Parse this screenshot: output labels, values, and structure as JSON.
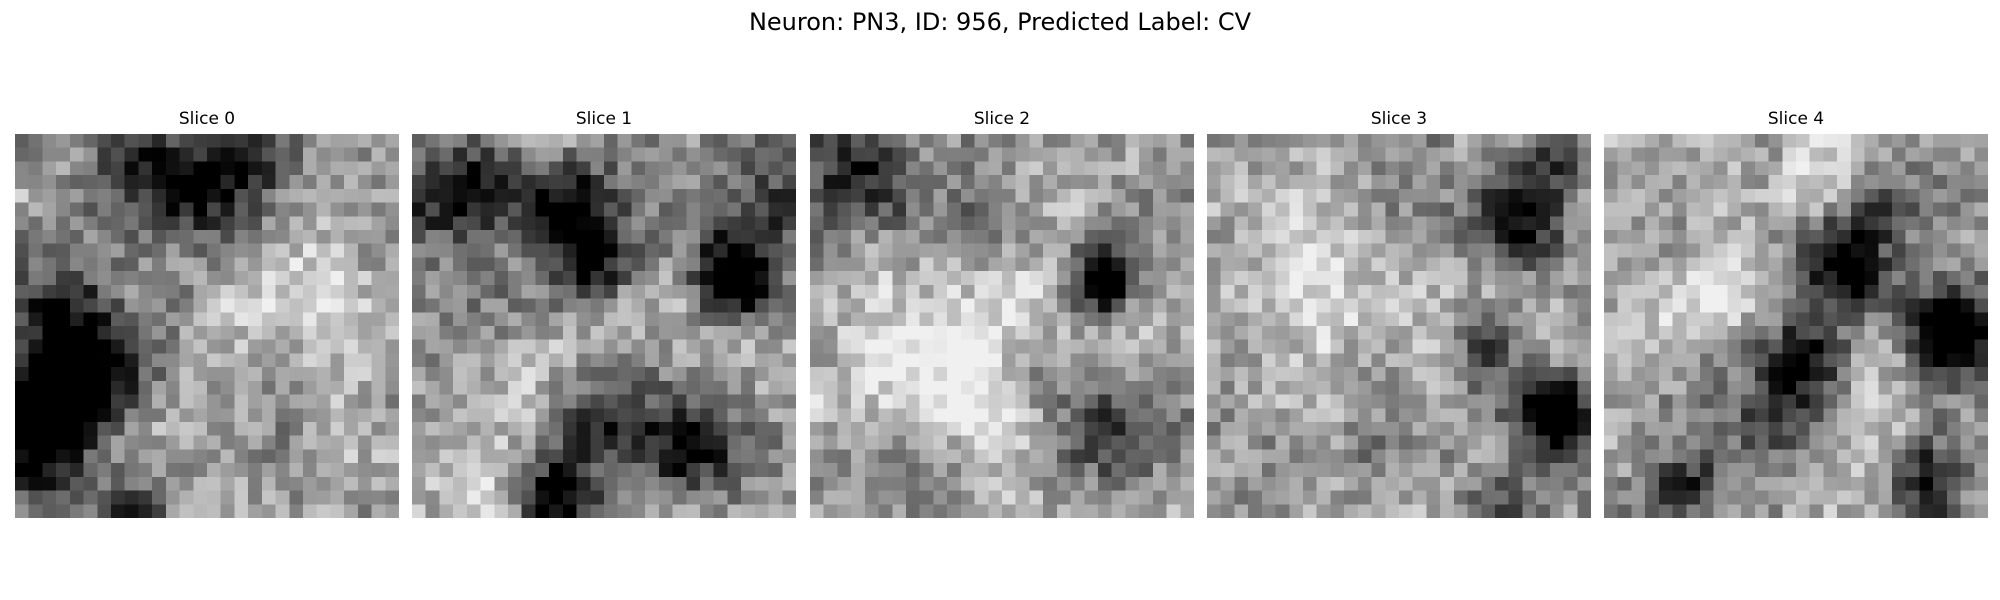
{
  "figure": {
    "title": "Neuron: PN3, ID: 956, Predicted Label: CV",
    "colormap": "grayscale",
    "grid_size": 28,
    "panels": [
      {
        "label": "Slice 0",
        "dark_spots": [
          [
            2,
            20,
            3.0,
            0.9
          ],
          [
            3,
            14,
            3.0,
            0.6
          ],
          [
            6,
            18,
            2.5,
            0.45
          ],
          [
            12,
            4,
            2.5,
            0.55
          ],
          [
            16,
            2,
            2.5,
            0.55
          ],
          [
            8,
            1,
            2.0,
            0.45
          ],
          [
            1,
            24,
            2.0,
            0.35
          ],
          [
            8,
            27,
            2.0,
            0.5
          ]
        ],
        "light_spots": [
          [
            21,
            10,
            3.5,
            0.3
          ],
          [
            8,
            23,
            3.0,
            0.25
          ]
        ]
      },
      {
        "label": "Slice 1",
        "dark_spots": [
          [
            3,
            4,
            3.0,
            0.55
          ],
          [
            11,
            5,
            2.5,
            0.6
          ],
          [
            23,
            10,
            2.0,
            0.95
          ],
          [
            10,
            26,
            2.0,
            0.85
          ],
          [
            14,
            20,
            2.5,
            0.55
          ],
          [
            20,
            22,
            3.0,
            0.5
          ],
          [
            25,
            5,
            2.5,
            0.45
          ],
          [
            13,
            9,
            2.0,
            0.5
          ]
        ],
        "light_spots": [
          [
            6,
            26,
            3.0,
            0.25
          ],
          [
            12,
            16,
            3.0,
            0.2
          ]
        ]
      },
      {
        "label": "Slice 2",
        "dark_spots": [
          [
            21,
            10,
            1.6,
            1.0
          ],
          [
            4,
            3,
            3.0,
            0.55
          ],
          [
            12,
            5,
            2.0,
            0.35
          ],
          [
            20,
            21,
            3.0,
            0.5
          ],
          [
            8,
            24,
            2.5,
            0.3
          ],
          [
            15,
            18,
            2.0,
            0.25
          ]
        ],
        "light_spots": [
          [
            10,
            14,
            5.0,
            0.3
          ],
          [
            14,
            20,
            4.0,
            0.25
          ],
          [
            4,
            17,
            3.0,
            0.2
          ]
        ]
      },
      {
        "label": "Slice 3",
        "dark_spots": [
          [
            25,
            20,
            2.0,
            1.0
          ],
          [
            22,
            6,
            2.5,
            0.5
          ],
          [
            25,
            2,
            2.0,
            0.35
          ],
          [
            20,
            15,
            2.0,
            0.3
          ],
          [
            22,
            26,
            2.0,
            0.3
          ]
        ],
        "light_spots": [
          [
            5,
            8,
            3.0,
            0.25
          ],
          [
            10,
            12,
            3.0,
            0.2
          ]
        ]
      },
      {
        "label": "Slice 4",
        "dark_spots": [
          [
            25,
            14,
            2.0,
            0.95
          ],
          [
            17,
            9,
            2.5,
            0.7
          ],
          [
            14,
            16,
            2.0,
            0.6
          ],
          [
            12,
            20,
            2.0,
            0.45
          ],
          [
            5,
            25,
            2.0,
            0.45
          ],
          [
            23,
            25,
            2.0,
            0.5
          ],
          [
            20,
            5,
            2.0,
            0.3
          ]
        ],
        "light_spots": [
          [
            15,
            3,
            3.0,
            0.3
          ],
          [
            6,
            12,
            3.0,
            0.25
          ],
          [
            20,
            20,
            2.5,
            0.2
          ]
        ]
      }
    ]
  }
}
